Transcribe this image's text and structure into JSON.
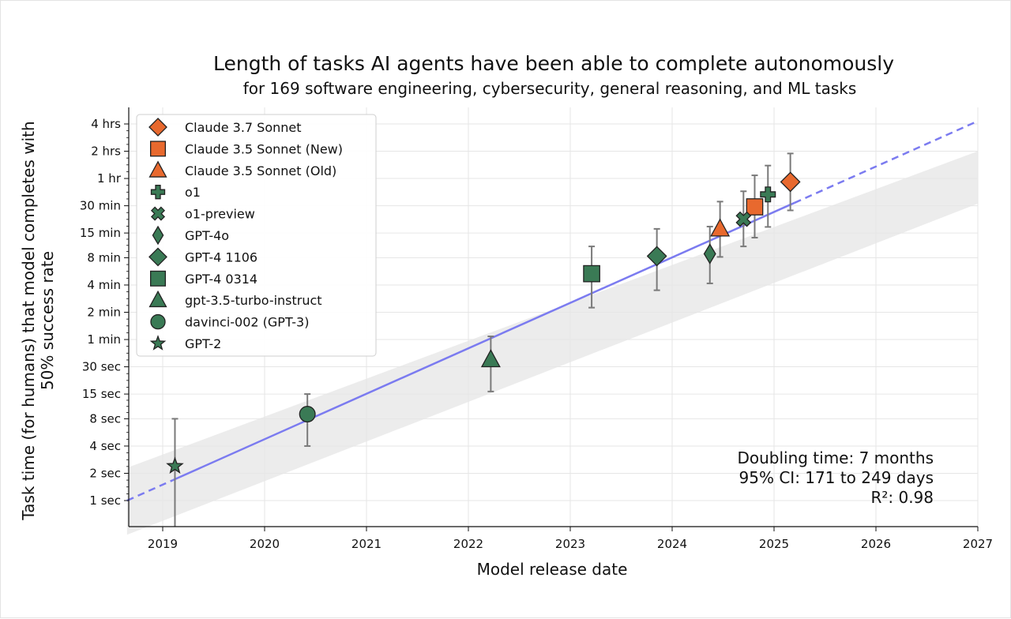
{
  "chart_data": {
    "type": "scatter",
    "title": "Length of tasks AI agents have been able to complete autonomously",
    "subtitle": "for 169 software engineering, cybersecurity, general reasoning, and ML tasks",
    "xlabel": "Model release date",
    "ylabel_line1": "Task time (for humans) that model completes with",
    "ylabel_line2": "50% success rate",
    "xlim": [
      2018.65,
      2027.0
    ],
    "ylim_seconds": [
      0.5,
      22000
    ],
    "y_scale": "log",
    "grid": true,
    "x_ticks": [
      {
        "value": 2019,
        "label": "2019"
      },
      {
        "value": 2020,
        "label": "2020"
      },
      {
        "value": 2021,
        "label": "2021"
      },
      {
        "value": 2022,
        "label": "2022"
      },
      {
        "value": 2023,
        "label": "2023"
      },
      {
        "value": 2024,
        "label": "2024"
      },
      {
        "value": 2025,
        "label": "2025"
      },
      {
        "value": 2026,
        "label": "2026"
      },
      {
        "value": 2027,
        "label": "2027"
      }
    ],
    "y_ticks": [
      {
        "seconds": 1,
        "label": "1 sec"
      },
      {
        "seconds": 2,
        "label": "2 sec"
      },
      {
        "seconds": 4,
        "label": "4 sec"
      },
      {
        "seconds": 8,
        "label": "8 sec"
      },
      {
        "seconds": 15,
        "label": "15 sec"
      },
      {
        "seconds": 30,
        "label": "30 sec"
      },
      {
        "seconds": 60,
        "label": "1 min"
      },
      {
        "seconds": 120,
        "label": "2 min"
      },
      {
        "seconds": 240,
        "label": "4 min"
      },
      {
        "seconds": 480,
        "label": "8 min"
      },
      {
        "seconds": 900,
        "label": "15 min"
      },
      {
        "seconds": 1800,
        "label": "30 min"
      },
      {
        "seconds": 3600,
        "label": "1 hr"
      },
      {
        "seconds": 7200,
        "label": "2 hrs"
      },
      {
        "seconds": 14400,
        "label": "4 hrs"
      }
    ],
    "trend": {
      "color": "#7b7bf0",
      "ci_fill": "#e6e6e6",
      "solid_range": [
        2019.1,
        2025.2
      ],
      "x_range": [
        2018.65,
        2027.0
      ],
      "line": [
        [
          2018.65,
          1.0
        ],
        [
          2027.0,
          15500
        ]
      ],
      "ci_upper": [
        [
          2018.65,
          2.3
        ],
        [
          2027.0,
          7200
        ]
      ],
      "ci_lower": [
        [
          2018.65,
          0.42
        ],
        [
          2027.0,
          1900
        ]
      ]
    },
    "series": [
      {
        "name": "Claude 3.7 Sonnet",
        "marker": "diamond",
        "color": "#e8692e",
        "x": 2025.16,
        "y": 3300,
        "err_low": 1600,
        "err_high": 6800
      },
      {
        "name": "Claude 3.5 Sonnet (New)",
        "marker": "square",
        "color": "#e8692e",
        "x": 2024.81,
        "y": 1750,
        "err_low": 800,
        "err_high": 3900
      },
      {
        "name": "Claude 3.5 Sonnet (Old)",
        "marker": "triangle",
        "color": "#e8692e",
        "x": 2024.47,
        "y": 1000,
        "err_low": 490,
        "err_high": 2000
      },
      {
        "name": "o1",
        "marker": "plus",
        "color": "#3a7a55",
        "x": 2024.94,
        "y": 2400,
        "err_low": 1050,
        "err_high": 5000
      },
      {
        "name": "o1-preview",
        "marker": "x",
        "color": "#3a7a55",
        "x": 2024.7,
        "y": 1280,
        "err_low": 640,
        "err_high": 2600
      },
      {
        "name": "GPT-4o",
        "marker": "thin-diamond",
        "color": "#3a7a55",
        "x": 2024.37,
        "y": 530,
        "err_low": 250,
        "err_high": 1060
      },
      {
        "name": "GPT-4 1106",
        "marker": "diamond",
        "color": "#3a7a55",
        "x": 2023.85,
        "y": 500,
        "err_low": 210,
        "err_high": 1000
      },
      {
        "name": "GPT-4 0314",
        "marker": "square",
        "color": "#3a7a55",
        "x": 2023.21,
        "y": 320,
        "err_low": 135,
        "err_high": 640
      },
      {
        "name": "gpt-3.5-turbo-instruct",
        "marker": "triangle",
        "color": "#3a7a55",
        "x": 2022.22,
        "y": 36,
        "err_low": 16,
        "err_high": 65
      },
      {
        "name": "davinci-002 (GPT-3)",
        "marker": "circle",
        "color": "#3a7a55",
        "x": 2020.42,
        "y": 9,
        "err_low": 4,
        "err_high": 15
      },
      {
        "name": "GPT-2",
        "marker": "star",
        "color": "#3a7a55",
        "x": 2019.12,
        "y": 2.4,
        "err_low": 0.45,
        "err_high": 8
      }
    ],
    "annotations": {
      "doubling": "Doubling time: 7 months",
      "ci": "95% CI: 171 to 249 days",
      "r2": "R²: 0.98"
    }
  }
}
